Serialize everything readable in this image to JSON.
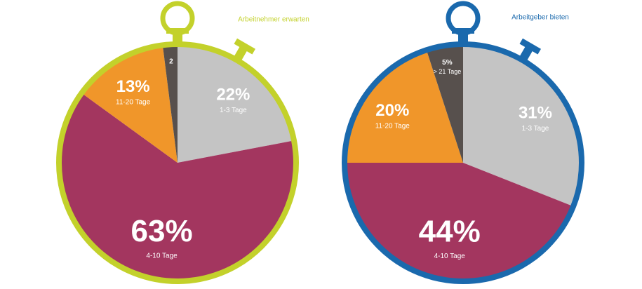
{
  "chart_data": [
    {
      "type": "pie",
      "title": "Arbeitnehmer erwarten",
      "ring_color": "#c3d12b",
      "categories": [
        "1-3 Tage",
        "4-10 Tage",
        "11-20 Tage",
        null
      ],
      "values": [
        22,
        63,
        13,
        2
      ],
      "value_labels": [
        "22%",
        "63%",
        "13%",
        "2"
      ],
      "colors": [
        "#c4c4c4",
        "#a3365f",
        "#f0962a",
        "#57504d"
      ]
    },
    {
      "type": "pie",
      "title": "Arbeitgeber bieten",
      "ring_color": "#1a69ad",
      "categories": [
        "1-3 Tage",
        "4-10 Tage",
        "11-20 Tage",
        "> 21 Tage"
      ],
      "values": [
        31,
        44,
        20,
        5
      ],
      "value_labels": [
        "31%",
        "44%",
        "20%",
        "5%"
      ],
      "colors": [
        "#c4c4c4",
        "#a3365f",
        "#f0962a",
        "#57504d"
      ]
    }
  ]
}
